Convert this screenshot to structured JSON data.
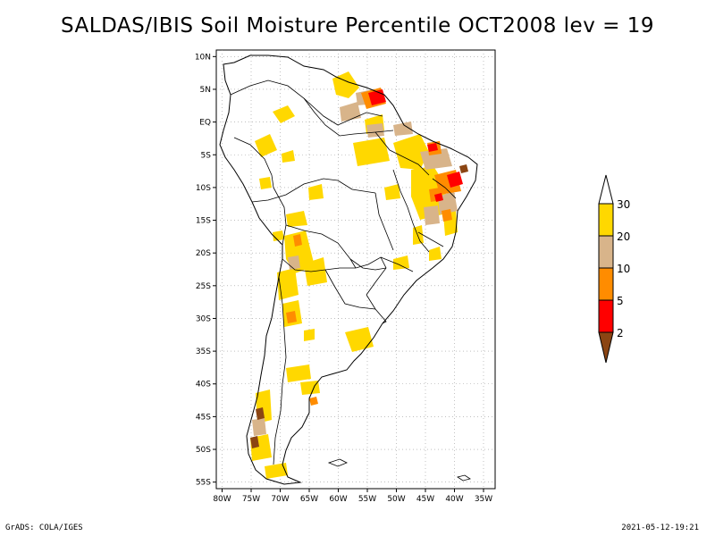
{
  "title": "SALDAS/IBIS Soil Moisture Percentile OCT2008 lev = 19",
  "map": {
    "lat_labels": [
      "10N",
      "5N",
      "EQ",
      "5S",
      "10S",
      "15S",
      "20S",
      "25S",
      "30S",
      "35S",
      "40S",
      "45S",
      "50S",
      "55S"
    ],
    "lon_labels": [
      "80W",
      "75W",
      "70W",
      "65W",
      "60W",
      "55W",
      "50W",
      "45W",
      "40W",
      "35W"
    ],
    "lat_range": [
      -56,
      11
    ],
    "lon_range": [
      -81,
      -33
    ]
  },
  "legend": {
    "levels": [
      "30",
      "20",
      "10",
      "5",
      "2"
    ],
    "colors": {
      "above_30": "#ffffff",
      "20_30": "#ffd800",
      "10_20": "#d8b48a",
      "5_10": "#ff8c00",
      "2_5": "#ff0000",
      "below_2": "#8b4513"
    }
  },
  "footer": {
    "left": "GrADS: COLA/IGES",
    "right": "2021-05-12-19:21"
  }
}
